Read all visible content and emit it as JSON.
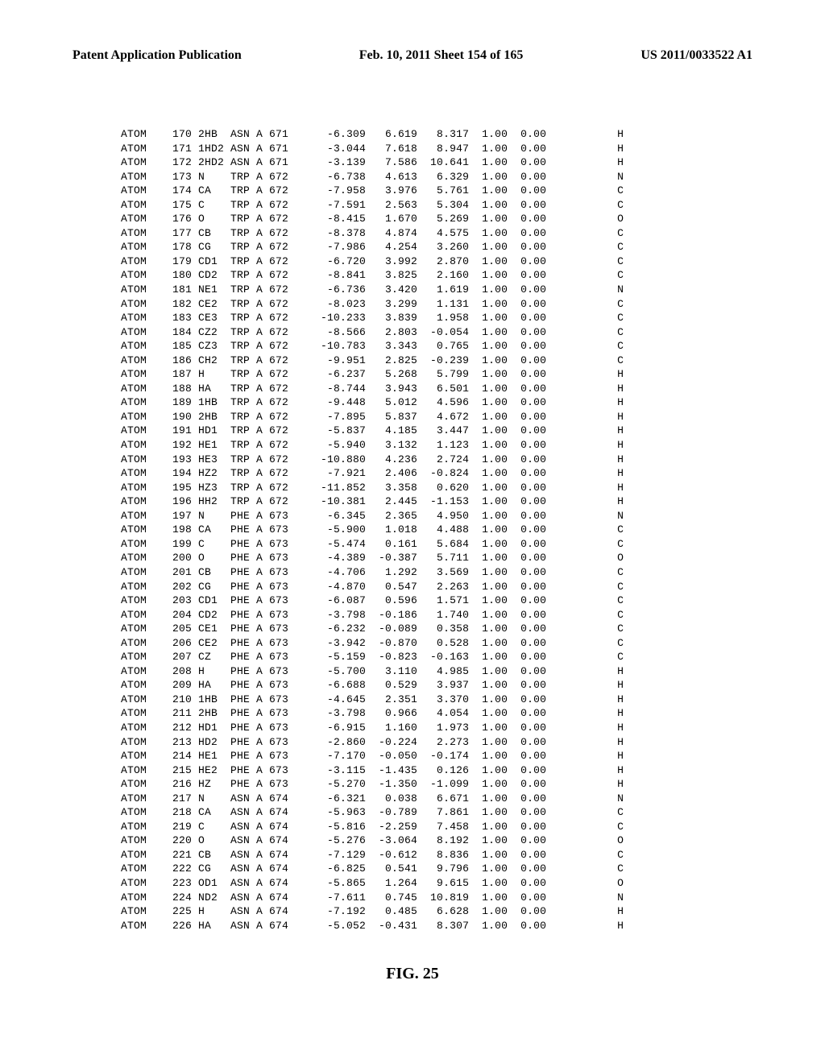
{
  "header": {
    "left": "Patent Application Publication",
    "center": "Feb. 10, 2011  Sheet 154 of 165",
    "right": "US 2011/0033522 A1"
  },
  "figure_label": "FIG. 25",
  "atoms": [
    {
      "rec": "ATOM",
      "serial": "170",
      "name": "2HB ",
      "res": "ASN",
      "chain": "A",
      "seq": "671",
      "x": "-6.309",
      "y": "6.619",
      "z": "8.317",
      "occ": "1.00",
      "b": "0.00",
      "elem": "H"
    },
    {
      "rec": "ATOM",
      "serial": "171",
      "name": "1HD2",
      "res": "ASN",
      "chain": "A",
      "seq": "671",
      "x": "-3.044",
      "y": "7.618",
      "z": "8.947",
      "occ": "1.00",
      "b": "0.00",
      "elem": "H"
    },
    {
      "rec": "ATOM",
      "serial": "172",
      "name": "2HD2",
      "res": "ASN",
      "chain": "A",
      "seq": "671",
      "x": "-3.139",
      "y": "7.586",
      "z": "10.641",
      "occ": "1.00",
      "b": "0.00",
      "elem": "H"
    },
    {
      "rec": "ATOM",
      "serial": "173",
      "name": "N   ",
      "res": "TRP",
      "chain": "A",
      "seq": "672",
      "x": "-6.738",
      "y": "4.613",
      "z": "6.329",
      "occ": "1.00",
      "b": "0.00",
      "elem": "N"
    },
    {
      "rec": "ATOM",
      "serial": "174",
      "name": "CA  ",
      "res": "TRP",
      "chain": "A",
      "seq": "672",
      "x": "-7.958",
      "y": "3.976",
      "z": "5.761",
      "occ": "1.00",
      "b": "0.00",
      "elem": "C"
    },
    {
      "rec": "ATOM",
      "serial": "175",
      "name": "C   ",
      "res": "TRP",
      "chain": "A",
      "seq": "672",
      "x": "-7.591",
      "y": "2.563",
      "z": "5.304",
      "occ": "1.00",
      "b": "0.00",
      "elem": "C"
    },
    {
      "rec": "ATOM",
      "serial": "176",
      "name": "O   ",
      "res": "TRP",
      "chain": "A",
      "seq": "672",
      "x": "-8.415",
      "y": "1.670",
      "z": "5.269",
      "occ": "1.00",
      "b": "0.00",
      "elem": "O"
    },
    {
      "rec": "ATOM",
      "serial": "177",
      "name": "CB  ",
      "res": "TRP",
      "chain": "A",
      "seq": "672",
      "x": "-8.378",
      "y": "4.874",
      "z": "4.575",
      "occ": "1.00",
      "b": "0.00",
      "elem": "C"
    },
    {
      "rec": "ATOM",
      "serial": "178",
      "name": "CG  ",
      "res": "TRP",
      "chain": "A",
      "seq": "672",
      "x": "-7.986",
      "y": "4.254",
      "z": "3.260",
      "occ": "1.00",
      "b": "0.00",
      "elem": "C"
    },
    {
      "rec": "ATOM",
      "serial": "179",
      "name": "CD1 ",
      "res": "TRP",
      "chain": "A",
      "seq": "672",
      "x": "-6.720",
      "y": "3.992",
      "z": "2.870",
      "occ": "1.00",
      "b": "0.00",
      "elem": "C"
    },
    {
      "rec": "ATOM",
      "serial": "180",
      "name": "CD2 ",
      "res": "TRP",
      "chain": "A",
      "seq": "672",
      "x": "-8.841",
      "y": "3.825",
      "z": "2.160",
      "occ": "1.00",
      "b": "0.00",
      "elem": "C"
    },
    {
      "rec": "ATOM",
      "serial": "181",
      "name": "NE1 ",
      "res": "TRP",
      "chain": "A",
      "seq": "672",
      "x": "-6.736",
      "y": "3.420",
      "z": "1.619",
      "occ": "1.00",
      "b": "0.00",
      "elem": "N"
    },
    {
      "rec": "ATOM",
      "serial": "182",
      "name": "CE2 ",
      "res": "TRP",
      "chain": "A",
      "seq": "672",
      "x": "-8.023",
      "y": "3.299",
      "z": "1.131",
      "occ": "1.00",
      "b": "0.00",
      "elem": "C"
    },
    {
      "rec": "ATOM",
      "serial": "183",
      "name": "CE3 ",
      "res": "TRP",
      "chain": "A",
      "seq": "672",
      "x": "-10.233",
      "y": "3.839",
      "z": "1.958",
      "occ": "1.00",
      "b": "0.00",
      "elem": "C"
    },
    {
      "rec": "ATOM",
      "serial": "184",
      "name": "CZ2 ",
      "res": "TRP",
      "chain": "A",
      "seq": "672",
      "x": "-8.566",
      "y": "2.803",
      "z": "-0.054",
      "occ": "1.00",
      "b": "0.00",
      "elem": "C"
    },
    {
      "rec": "ATOM",
      "serial": "185",
      "name": "CZ3 ",
      "res": "TRP",
      "chain": "A",
      "seq": "672",
      "x": "-10.783",
      "y": "3.343",
      "z": "0.765",
      "occ": "1.00",
      "b": "0.00",
      "elem": "C"
    },
    {
      "rec": "ATOM",
      "serial": "186",
      "name": "CH2 ",
      "res": "TRP",
      "chain": "A",
      "seq": "672",
      "x": "-9.951",
      "y": "2.825",
      "z": "-0.239",
      "occ": "1.00",
      "b": "0.00",
      "elem": "C"
    },
    {
      "rec": "ATOM",
      "serial": "187",
      "name": "H   ",
      "res": "TRP",
      "chain": "A",
      "seq": "672",
      "x": "-6.237",
      "y": "5.268",
      "z": "5.799",
      "occ": "1.00",
      "b": "0.00",
      "elem": "H"
    },
    {
      "rec": "ATOM",
      "serial": "188",
      "name": "HA  ",
      "res": "TRP",
      "chain": "A",
      "seq": "672",
      "x": "-8.744",
      "y": "3.943",
      "z": "6.501",
      "occ": "1.00",
      "b": "0.00",
      "elem": "H"
    },
    {
      "rec": "ATOM",
      "serial": "189",
      "name": "1HB ",
      "res": "TRP",
      "chain": "A",
      "seq": "672",
      "x": "-9.448",
      "y": "5.012",
      "z": "4.596",
      "occ": "1.00",
      "b": "0.00",
      "elem": "H"
    },
    {
      "rec": "ATOM",
      "serial": "190",
      "name": "2HB ",
      "res": "TRP",
      "chain": "A",
      "seq": "672",
      "x": "-7.895",
      "y": "5.837",
      "z": "4.672",
      "occ": "1.00",
      "b": "0.00",
      "elem": "H"
    },
    {
      "rec": "ATOM",
      "serial": "191",
      "name": "HD1 ",
      "res": "TRP",
      "chain": "A",
      "seq": "672",
      "x": "-5.837",
      "y": "4.185",
      "z": "3.447",
      "occ": "1.00",
      "b": "0.00",
      "elem": "H"
    },
    {
      "rec": "ATOM",
      "serial": "192",
      "name": "HE1 ",
      "res": "TRP",
      "chain": "A",
      "seq": "672",
      "x": "-5.940",
      "y": "3.132",
      "z": "1.123",
      "occ": "1.00",
      "b": "0.00",
      "elem": "H"
    },
    {
      "rec": "ATOM",
      "serial": "193",
      "name": "HE3 ",
      "res": "TRP",
      "chain": "A",
      "seq": "672",
      "x": "-10.880",
      "y": "4.236",
      "z": "2.724",
      "occ": "1.00",
      "b": "0.00",
      "elem": "H"
    },
    {
      "rec": "ATOM",
      "serial": "194",
      "name": "HZ2 ",
      "res": "TRP",
      "chain": "A",
      "seq": "672",
      "x": "-7.921",
      "y": "2.406",
      "z": "-0.824",
      "occ": "1.00",
      "b": "0.00",
      "elem": "H"
    },
    {
      "rec": "ATOM",
      "serial": "195",
      "name": "HZ3 ",
      "res": "TRP",
      "chain": "A",
      "seq": "672",
      "x": "-11.852",
      "y": "3.358",
      "z": "0.620",
      "occ": "1.00",
      "b": "0.00",
      "elem": "H"
    },
    {
      "rec": "ATOM",
      "serial": "196",
      "name": "HH2 ",
      "res": "TRP",
      "chain": "A",
      "seq": "672",
      "x": "-10.381",
      "y": "2.445",
      "z": "-1.153",
      "occ": "1.00",
      "b": "0.00",
      "elem": "H"
    },
    {
      "rec": "ATOM",
      "serial": "197",
      "name": "N   ",
      "res": "PHE",
      "chain": "A",
      "seq": "673",
      "x": "-6.345",
      "y": "2.365",
      "z": "4.950",
      "occ": "1.00",
      "b": "0.00",
      "elem": "N"
    },
    {
      "rec": "ATOM",
      "serial": "198",
      "name": "CA  ",
      "res": "PHE",
      "chain": "A",
      "seq": "673",
      "x": "-5.900",
      "y": "1.018",
      "z": "4.488",
      "occ": "1.00",
      "b": "0.00",
      "elem": "C"
    },
    {
      "rec": "ATOM",
      "serial": "199",
      "name": "C   ",
      "res": "PHE",
      "chain": "A",
      "seq": "673",
      "x": "-5.474",
      "y": "0.161",
      "z": "5.684",
      "occ": "1.00",
      "b": "0.00",
      "elem": "C"
    },
    {
      "rec": "ATOM",
      "serial": "200",
      "name": "O   ",
      "res": "PHE",
      "chain": "A",
      "seq": "673",
      "x": "-4.389",
      "y": "-0.387",
      "z": "5.711",
      "occ": "1.00",
      "b": "0.00",
      "elem": "O"
    },
    {
      "rec": "ATOM",
      "serial": "201",
      "name": "CB  ",
      "res": "PHE",
      "chain": "A",
      "seq": "673",
      "x": "-4.706",
      "y": "1.292",
      "z": "3.569",
      "occ": "1.00",
      "b": "0.00",
      "elem": "C"
    },
    {
      "rec": "ATOM",
      "serial": "202",
      "name": "CG  ",
      "res": "PHE",
      "chain": "A",
      "seq": "673",
      "x": "-4.870",
      "y": "0.547",
      "z": "2.263",
      "occ": "1.00",
      "b": "0.00",
      "elem": "C"
    },
    {
      "rec": "ATOM",
      "serial": "203",
      "name": "CD1 ",
      "res": "PHE",
      "chain": "A",
      "seq": "673",
      "x": "-6.087",
      "y": "0.596",
      "z": "1.571",
      "occ": "1.00",
      "b": "0.00",
      "elem": "C"
    },
    {
      "rec": "ATOM",
      "serial": "204",
      "name": "CD2 ",
      "res": "PHE",
      "chain": "A",
      "seq": "673",
      "x": "-3.798",
      "y": "-0.186",
      "z": "1.740",
      "occ": "1.00",
      "b": "0.00",
      "elem": "C"
    },
    {
      "rec": "ATOM",
      "serial": "205",
      "name": "CE1 ",
      "res": "PHE",
      "chain": "A",
      "seq": "673",
      "x": "-6.232",
      "y": "-0.089",
      "z": "0.358",
      "occ": "1.00",
      "b": "0.00",
      "elem": "C"
    },
    {
      "rec": "ATOM",
      "serial": "206",
      "name": "CE2 ",
      "res": "PHE",
      "chain": "A",
      "seq": "673",
      "x": "-3.942",
      "y": "-0.870",
      "z": "0.528",
      "occ": "1.00",
      "b": "0.00",
      "elem": "C"
    },
    {
      "rec": "ATOM",
      "serial": "207",
      "name": "CZ  ",
      "res": "PHE",
      "chain": "A",
      "seq": "673",
      "x": "-5.159",
      "y": "-0.823",
      "z": "-0.163",
      "occ": "1.00",
      "b": "0.00",
      "elem": "C"
    },
    {
      "rec": "ATOM",
      "serial": "208",
      "name": "H   ",
      "res": "PHE",
      "chain": "A",
      "seq": "673",
      "x": "-5.700",
      "y": "3.110",
      "z": "4.985",
      "occ": "1.00",
      "b": "0.00",
      "elem": "H"
    },
    {
      "rec": "ATOM",
      "serial": "209",
      "name": "HA  ",
      "res": "PHE",
      "chain": "A",
      "seq": "673",
      "x": "-6.688",
      "y": "0.529",
      "z": "3.937",
      "occ": "1.00",
      "b": "0.00",
      "elem": "H"
    },
    {
      "rec": "ATOM",
      "serial": "210",
      "name": "1HB ",
      "res": "PHE",
      "chain": "A",
      "seq": "673",
      "x": "-4.645",
      "y": "2.351",
      "z": "3.370",
      "occ": "1.00",
      "b": "0.00",
      "elem": "H"
    },
    {
      "rec": "ATOM",
      "serial": "211",
      "name": "2HB ",
      "res": "PHE",
      "chain": "A",
      "seq": "673",
      "x": "-3.798",
      "y": "0.966",
      "z": "4.054",
      "occ": "1.00",
      "b": "0.00",
      "elem": "H"
    },
    {
      "rec": "ATOM",
      "serial": "212",
      "name": "HD1 ",
      "res": "PHE",
      "chain": "A",
      "seq": "673",
      "x": "-6.915",
      "y": "1.160",
      "z": "1.973",
      "occ": "1.00",
      "b": "0.00",
      "elem": "H"
    },
    {
      "rec": "ATOM",
      "serial": "213",
      "name": "HD2 ",
      "res": "PHE",
      "chain": "A",
      "seq": "673",
      "x": "-2.860",
      "y": "-0.224",
      "z": "2.273",
      "occ": "1.00",
      "b": "0.00",
      "elem": "H"
    },
    {
      "rec": "ATOM",
      "serial": "214",
      "name": "HE1 ",
      "res": "PHE",
      "chain": "A",
      "seq": "673",
      "x": "-7.170",
      "y": "-0.050",
      "z": "-0.174",
      "occ": "1.00",
      "b": "0.00",
      "elem": "H"
    },
    {
      "rec": "ATOM",
      "serial": "215",
      "name": "HE2 ",
      "res": "PHE",
      "chain": "A",
      "seq": "673",
      "x": "-3.115",
      "y": "-1.435",
      "z": "0.126",
      "occ": "1.00",
      "b": "0.00",
      "elem": "H"
    },
    {
      "rec": "ATOM",
      "serial": "216",
      "name": "HZ  ",
      "res": "PHE",
      "chain": "A",
      "seq": "673",
      "x": "-5.270",
      "y": "-1.350",
      "z": "-1.099",
      "occ": "1.00",
      "b": "0.00",
      "elem": "H"
    },
    {
      "rec": "ATOM",
      "serial": "217",
      "name": "N   ",
      "res": "ASN",
      "chain": "A",
      "seq": "674",
      "x": "-6.321",
      "y": "0.038",
      "z": "6.671",
      "occ": "1.00",
      "b": "0.00",
      "elem": "N"
    },
    {
      "rec": "ATOM",
      "serial": "218",
      "name": "CA  ",
      "res": "ASN",
      "chain": "A",
      "seq": "674",
      "x": "-5.963",
      "y": "-0.789",
      "z": "7.861",
      "occ": "1.00",
      "b": "0.00",
      "elem": "C"
    },
    {
      "rec": "ATOM",
      "serial": "219",
      "name": "C   ",
      "res": "ASN",
      "chain": "A",
      "seq": "674",
      "x": "-5.816",
      "y": "-2.259",
      "z": "7.458",
      "occ": "1.00",
      "b": "0.00",
      "elem": "C"
    },
    {
      "rec": "ATOM",
      "serial": "220",
      "name": "O   ",
      "res": "ASN",
      "chain": "A",
      "seq": "674",
      "x": "-5.276",
      "y": "-3.064",
      "z": "8.192",
      "occ": "1.00",
      "b": "0.00",
      "elem": "O"
    },
    {
      "rec": "ATOM",
      "serial": "221",
      "name": "CB  ",
      "res": "ASN",
      "chain": "A",
      "seq": "674",
      "x": "-7.129",
      "y": "-0.612",
      "z": "8.836",
      "occ": "1.00",
      "b": "0.00",
      "elem": "C"
    },
    {
      "rec": "ATOM",
      "serial": "222",
      "name": "CG  ",
      "res": "ASN",
      "chain": "A",
      "seq": "674",
      "x": "-6.825",
      "y": "0.541",
      "z": "9.796",
      "occ": "1.00",
      "b": "0.00",
      "elem": "C"
    },
    {
      "rec": "ATOM",
      "serial": "223",
      "name": "OD1 ",
      "res": "ASN",
      "chain": "A",
      "seq": "674",
      "x": "-5.865",
      "y": "1.264",
      "z": "9.615",
      "occ": "1.00",
      "b": "0.00",
      "elem": "O"
    },
    {
      "rec": "ATOM",
      "serial": "224",
      "name": "ND2 ",
      "res": "ASN",
      "chain": "A",
      "seq": "674",
      "x": "-7.611",
      "y": "0.745",
      "z": "10.819",
      "occ": "1.00",
      "b": "0.00",
      "elem": "N"
    },
    {
      "rec": "ATOM",
      "serial": "225",
      "name": "H   ",
      "res": "ASN",
      "chain": "A",
      "seq": "674",
      "x": "-7.192",
      "y": "0.485",
      "z": "6.628",
      "occ": "1.00",
      "b": "0.00",
      "elem": "H"
    },
    {
      "rec": "ATOM",
      "serial": "226",
      "name": "HA  ",
      "res": "ASN",
      "chain": "A",
      "seq": "674",
      "x": "-5.052",
      "y": "-0.431",
      "z": "8.307",
      "occ": "1.00",
      "b": "0.00",
      "elem": "H"
    }
  ]
}
